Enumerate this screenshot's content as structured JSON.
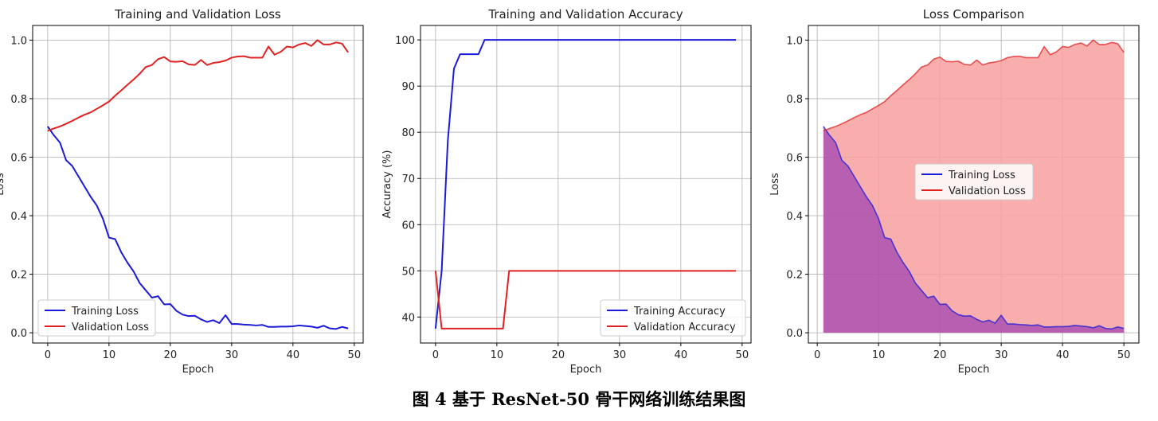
{
  "figure": {
    "caption": "图 4  基于 ResNet-50 骨干网络训练结果图"
  },
  "colors": {
    "training": "#1a1adb",
    "validation": "#e02222",
    "training_fill": "#8a2ab0",
    "validation_fill": "#f8a0a0",
    "grid": "#b0b0b0"
  },
  "chart_data": [
    {
      "type": "line",
      "title": "Training and Validation Loss",
      "xlabel": "Epoch",
      "ylabel": "Loss",
      "xlim": [
        -2.45,
        51.45
      ],
      "ylim": [
        -0.035,
        1.05
      ],
      "xticks": [
        0,
        10,
        20,
        30,
        40,
        50
      ],
      "yticks": [
        0.0,
        0.2,
        0.4,
        0.6,
        0.8,
        1.0
      ],
      "ytick_labels": [
        "0.0",
        "0.2",
        "0.4",
        "0.6",
        "0.8",
        "1.0"
      ],
      "grid": true,
      "legend": "lower-left",
      "x": [
        0,
        1,
        2,
        3,
        4,
        5,
        6,
        7,
        8,
        9,
        10,
        11,
        12,
        13,
        14,
        15,
        16,
        17,
        18,
        19,
        20,
        21,
        22,
        23,
        24,
        25,
        26,
        27,
        28,
        29,
        30,
        31,
        32,
        33,
        34,
        35,
        36,
        37,
        38,
        39,
        40,
        41,
        42,
        43,
        44,
        45,
        46,
        47,
        48,
        49
      ],
      "series": [
        {
          "name": "Training Loss",
          "values": [
            0.705,
            0.675,
            0.65,
            0.59,
            0.57,
            0.535,
            0.5,
            0.465,
            0.435,
            0.39,
            0.325,
            0.32,
            0.275,
            0.24,
            0.21,
            0.17,
            0.145,
            0.12,
            0.125,
            0.097,
            0.098,
            0.075,
            0.062,
            0.057,
            0.058,
            0.046,
            0.037,
            0.043,
            0.033,
            0.06,
            0.03,
            0.03,
            0.028,
            0.027,
            0.025,
            0.027,
            0.02,
            0.02,
            0.021,
            0.021,
            0.022,
            0.025,
            0.023,
            0.021,
            0.017,
            0.024,
            0.015,
            0.013,
            0.02,
            0.015
          ]
        },
        {
          "name": "Validation Loss",
          "values": [
            0.69,
            0.698,
            0.705,
            0.714,
            0.724,
            0.735,
            0.745,
            0.753,
            0.765,
            0.777,
            0.79,
            0.81,
            0.828,
            0.847,
            0.865,
            0.885,
            0.908,
            0.915,
            0.935,
            0.942,
            0.927,
            0.926,
            0.928,
            0.917,
            0.915,
            0.932,
            0.915,
            0.922,
            0.925,
            0.93,
            0.94,
            0.944,
            0.945,
            0.94,
            0.94,
            0.94,
            0.978,
            0.95,
            0.96,
            0.978,
            0.975,
            0.985,
            0.99,
            0.98,
            1.0,
            0.985,
            0.985,
            0.992,
            0.988,
            0.958
          ]
        }
      ]
    },
    {
      "type": "line",
      "title": "Training and Validation Accuracy",
      "xlabel": "Epoch",
      "ylabel": "Accuracy (%)",
      "xlim": [
        -2.45,
        51.45
      ],
      "ylim": [
        34.375,
        103.125
      ],
      "xticks": [
        0,
        10,
        20,
        30,
        40,
        50
      ],
      "yticks": [
        40,
        50,
        60,
        70,
        80,
        90,
        100
      ],
      "ytick_labels": [
        "40",
        "50",
        "60",
        "70",
        "80",
        "90",
        "100"
      ],
      "grid": true,
      "legend": "lower-right",
      "x": [
        0,
        1,
        2,
        3,
        4,
        5,
        6,
        7,
        8,
        9,
        10,
        11,
        12,
        13,
        14,
        15,
        16,
        17,
        18,
        19,
        20,
        21,
        22,
        23,
        24,
        25,
        26,
        27,
        28,
        29,
        30,
        31,
        32,
        33,
        34,
        35,
        36,
        37,
        38,
        39,
        40,
        41,
        42,
        43,
        44,
        45,
        46,
        47,
        48,
        49
      ],
      "series": [
        {
          "name": "Training Accuracy",
          "values": [
            37.5,
            50,
            78.1,
            93.75,
            96.9,
            96.9,
            96.9,
            96.9,
            100,
            100,
            100,
            100,
            100,
            100,
            100,
            100,
            100,
            100,
            100,
            100,
            100,
            100,
            100,
            100,
            100,
            100,
            100,
            100,
            100,
            100,
            100,
            100,
            100,
            100,
            100,
            100,
            100,
            100,
            100,
            100,
            100,
            100,
            100,
            100,
            100,
            100,
            100,
            100,
            100,
            100
          ]
        },
        {
          "name": "Validation Accuracy",
          "values": [
            50,
            37.5,
            37.5,
            37.5,
            37.5,
            37.5,
            37.5,
            37.5,
            37.5,
            37.5,
            37.5,
            37.5,
            50,
            50,
            50,
            50,
            50,
            50,
            50,
            50,
            50,
            50,
            50,
            50,
            50,
            50,
            50,
            50,
            50,
            50,
            50,
            50,
            50,
            50,
            50,
            50,
            50,
            50,
            50,
            50,
            50,
            50,
            50,
            50,
            50,
            50,
            50,
            50,
            50,
            50
          ]
        }
      ]
    },
    {
      "type": "area",
      "title": "Loss Comparison",
      "xlabel": "Epoch",
      "ylabel": "Loss",
      "xlim": [
        -1.45,
        52.45
      ],
      "ylim": [
        -0.035,
        1.05
      ],
      "xticks": [
        0,
        10,
        20,
        30,
        40,
        50
      ],
      "yticks": [
        0.0,
        0.2,
        0.4,
        0.6,
        0.8,
        1.0
      ],
      "ytick_labels": [
        "0.0",
        "0.2",
        "0.4",
        "0.6",
        "0.8",
        "1.0"
      ],
      "grid": true,
      "legend": "center",
      "x": [
        1,
        2,
        3,
        4,
        5,
        6,
        7,
        8,
        9,
        10,
        11,
        12,
        13,
        14,
        15,
        16,
        17,
        18,
        19,
        20,
        21,
        22,
        23,
        24,
        25,
        26,
        27,
        28,
        29,
        30,
        31,
        32,
        33,
        34,
        35,
        36,
        37,
        38,
        39,
        40,
        41,
        42,
        43,
        44,
        45,
        46,
        47,
        48,
        49,
        50
      ],
      "series": [
        {
          "name": "Training Loss",
          "values": [
            0.705,
            0.675,
            0.65,
            0.59,
            0.57,
            0.535,
            0.5,
            0.465,
            0.435,
            0.39,
            0.325,
            0.32,
            0.275,
            0.24,
            0.21,
            0.17,
            0.145,
            0.12,
            0.125,
            0.097,
            0.098,
            0.075,
            0.062,
            0.057,
            0.058,
            0.046,
            0.037,
            0.043,
            0.033,
            0.06,
            0.03,
            0.03,
            0.028,
            0.027,
            0.025,
            0.027,
            0.02,
            0.02,
            0.021,
            0.021,
            0.022,
            0.025,
            0.023,
            0.021,
            0.017,
            0.024,
            0.015,
            0.013,
            0.02,
            0.015
          ]
        },
        {
          "name": "Validation Loss",
          "values": [
            0.69,
            0.698,
            0.705,
            0.714,
            0.724,
            0.735,
            0.745,
            0.753,
            0.765,
            0.777,
            0.79,
            0.81,
            0.828,
            0.847,
            0.865,
            0.885,
            0.908,
            0.915,
            0.935,
            0.942,
            0.927,
            0.926,
            0.928,
            0.917,
            0.915,
            0.932,
            0.915,
            0.922,
            0.925,
            0.93,
            0.94,
            0.944,
            0.945,
            0.94,
            0.94,
            0.94,
            0.978,
            0.95,
            0.96,
            0.978,
            0.975,
            0.985,
            0.99,
            0.98,
            1.0,
            0.985,
            0.985,
            0.992,
            0.988,
            0.958
          ]
        }
      ]
    }
  ]
}
